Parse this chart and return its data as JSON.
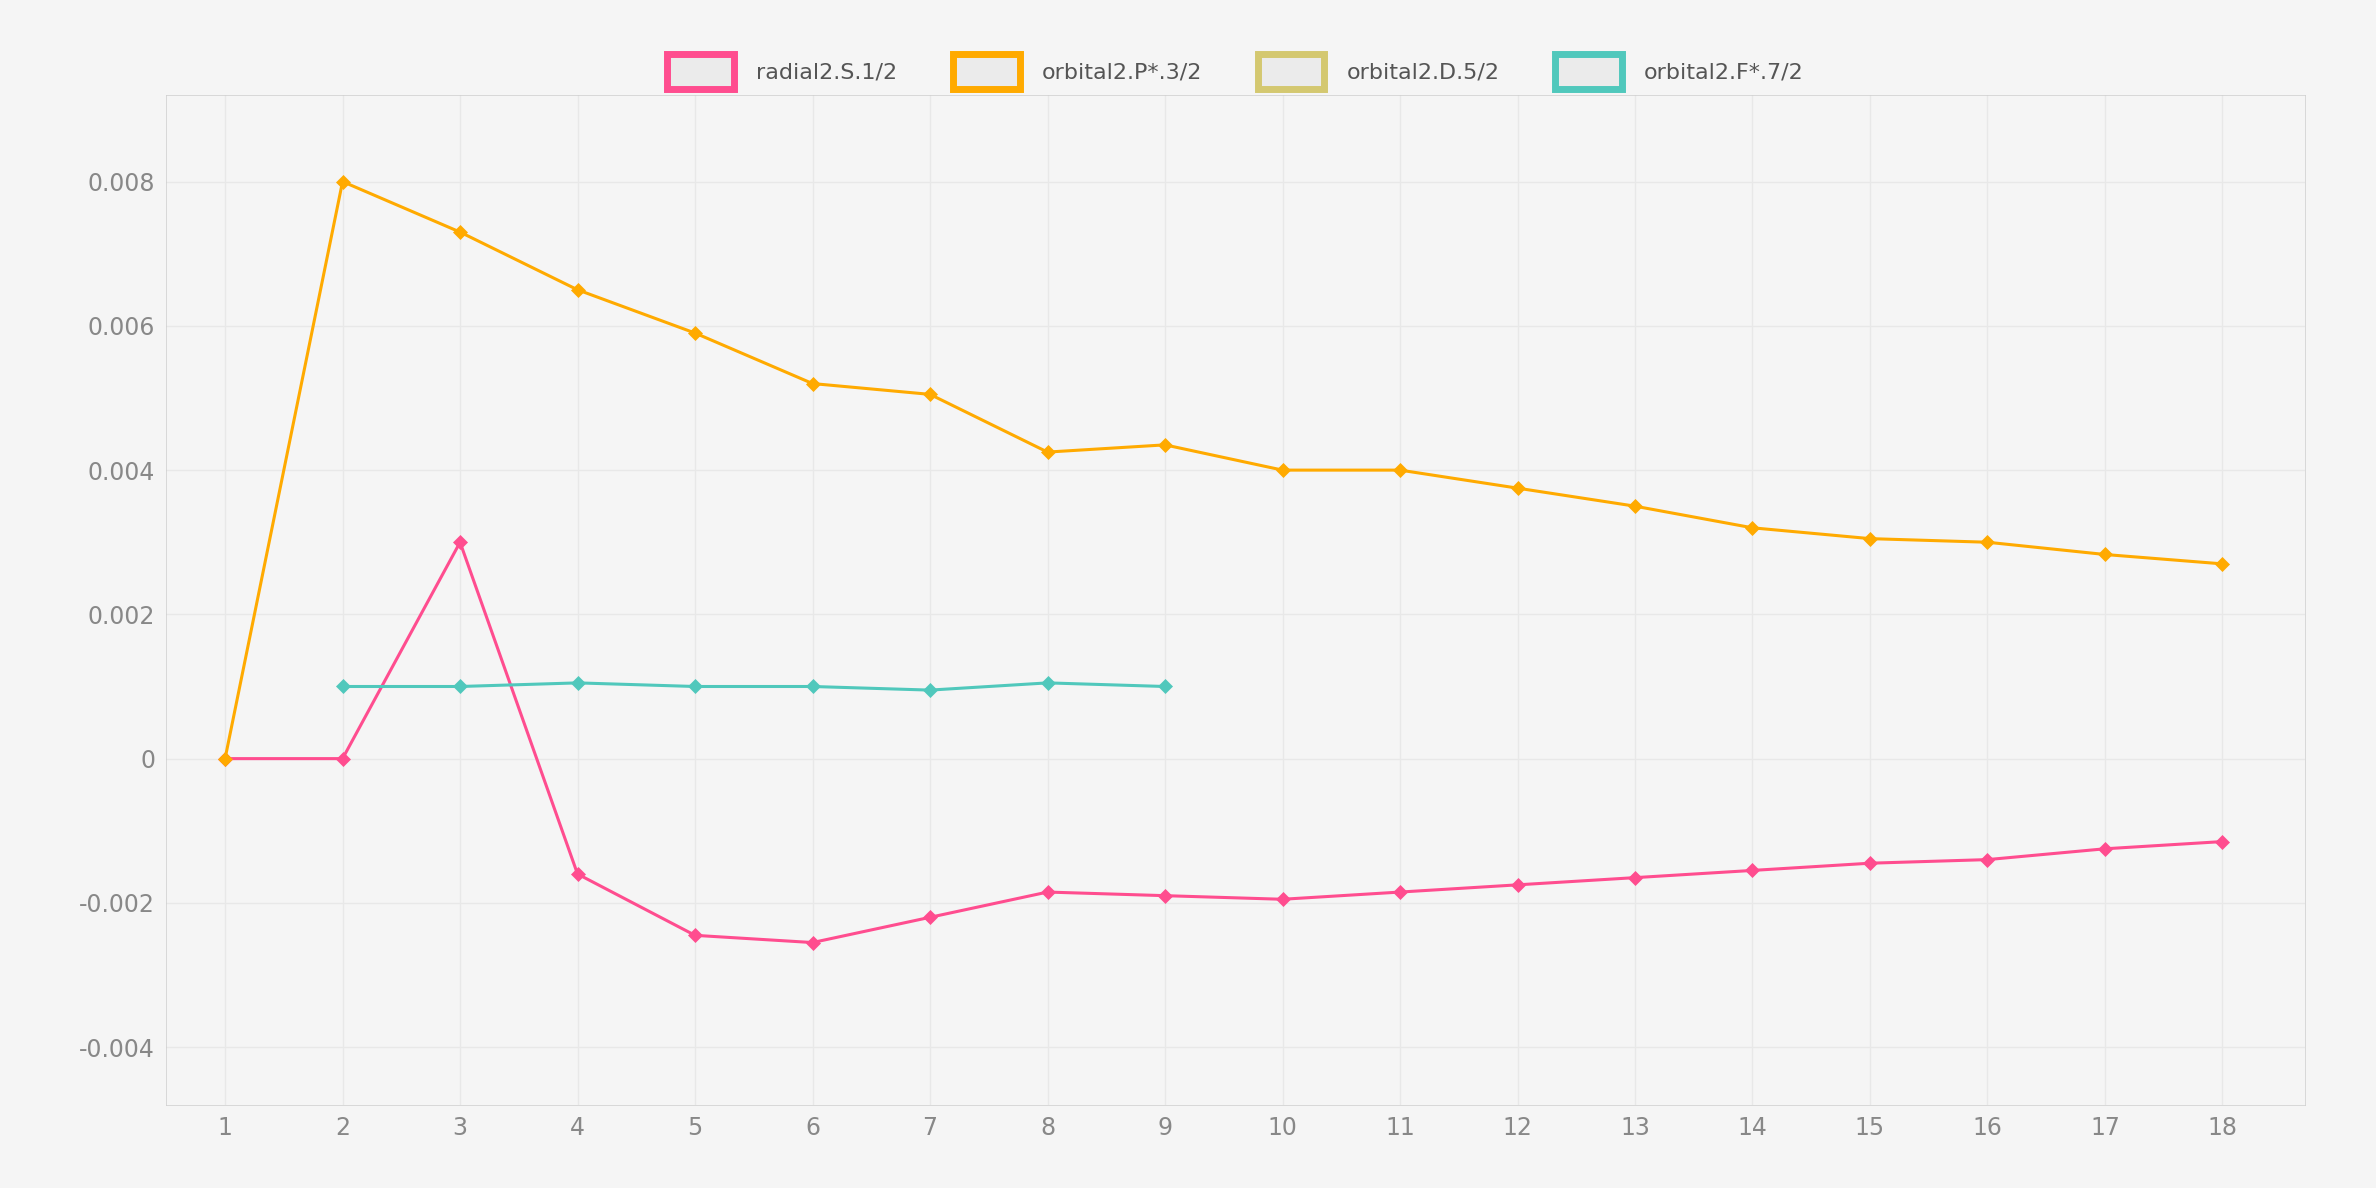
{
  "x": [
    1,
    2,
    3,
    4,
    5,
    6,
    7,
    8,
    9,
    10,
    11,
    12,
    13,
    14,
    15,
    16,
    17,
    18
  ],
  "pink_y": [
    0.0,
    0.0,
    0.003,
    -0.0016,
    -0.00245,
    -0.00255,
    -0.0022,
    -0.00185,
    -0.0019,
    -0.00195,
    -0.00185,
    -0.00175,
    -0.00165,
    -0.00155,
    -0.00145,
    -0.0014,
    -0.00125,
    -0.00115
  ],
  "orange_y": [
    0.0,
    0.008,
    0.0073,
    0.0065,
    0.0059,
    0.0052,
    0.00505,
    0.00425,
    0.00435,
    0.004,
    0.004,
    0.00375,
    0.0035,
    0.0032,
    0.00305,
    0.003,
    0.00283,
    0.0027
  ],
  "yellow_y": [
    null,
    null,
    null,
    null,
    null,
    null,
    null,
    null,
    null,
    null,
    null,
    null,
    null,
    null,
    null,
    null,
    null,
    null
  ],
  "teal_y": [
    null,
    0.001,
    0.001,
    0.00105,
    0.001,
    0.001,
    0.00095,
    0.00105,
    0.001,
    null,
    null,
    null,
    null,
    null,
    null,
    null,
    null,
    null
  ],
  "color_pink": "#ff4d8f",
  "color_orange": "#ffaa00",
  "color_yellow": "#d4c870",
  "color_teal": "#50c8bc",
  "legend_labels": [
    "radial2.S.1/2",
    "orbital2.P*.3/2",
    "orbital2.D.5/2",
    "orbital2.F*.7/2"
  ],
  "yticks": [
    -0.004,
    -0.002,
    0.0,
    0.002,
    0.004,
    0.006,
    0.008
  ],
  "xticks": [
    1,
    2,
    3,
    4,
    5,
    6,
    7,
    8,
    9,
    10,
    11,
    12,
    13,
    14,
    15,
    16,
    17,
    18
  ],
  "xlim": [
    0.5,
    18.7
  ],
  "ylim": [
    -0.0048,
    0.0092
  ],
  "background_color": "#f5f5f5",
  "grid_color": "#dddddd",
  "figsize": [
    23.76,
    11.88
  ],
  "dpi": 100
}
